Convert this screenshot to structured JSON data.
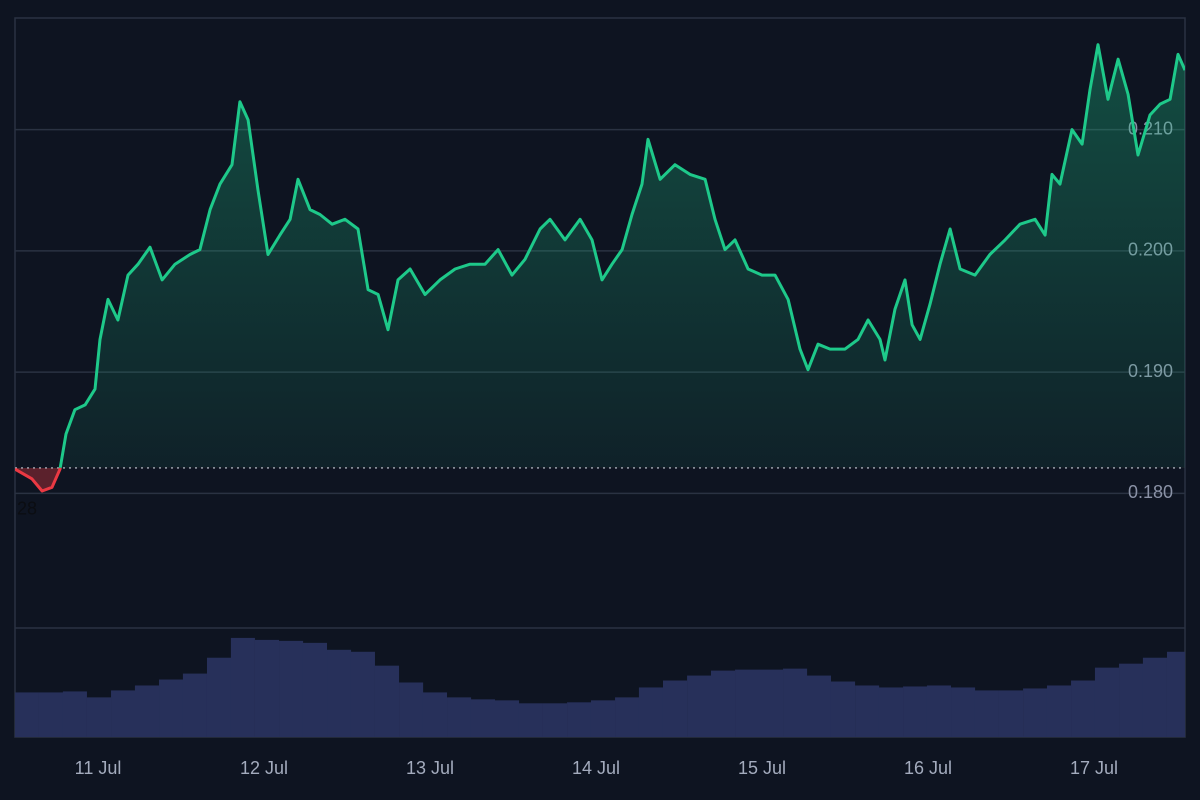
{
  "chart_data": [
    {
      "type": "line",
      "x": [
        10.5,
        10.602,
        10.663,
        10.723,
        10.771,
        10.807,
        10.861,
        10.922,
        10.982,
        11.012,
        11.06,
        11.12,
        11.181,
        11.241,
        11.313,
        11.386,
        11.464,
        11.554,
        11.614,
        11.675,
        11.735,
        11.807,
        11.855,
        11.904,
        11.964,
        12.024,
        12.096,
        12.157,
        12.205,
        12.277,
        12.337,
        12.41,
        12.488,
        12.566,
        12.627,
        12.687,
        12.747,
        12.807,
        12.88,
        12.97,
        13.06,
        13.151,
        13.241,
        13.331,
        13.41,
        13.494,
        13.572,
        13.663,
        13.723,
        13.813,
        13.904,
        13.976,
        14.036,
        14.096,
        14.157,
        14.217,
        14.277,
        14.313,
        14.386,
        14.476,
        14.566,
        14.657,
        14.717,
        14.777,
        14.837,
        14.916,
        15.0,
        15.078,
        15.157,
        15.229,
        15.277,
        15.337,
        15.41,
        15.5,
        15.578,
        15.639,
        15.711,
        15.741,
        15.801,
        15.861,
        15.904,
        15.952,
        16.012,
        16.072,
        16.133,
        16.193,
        16.283,
        16.373,
        16.464,
        16.554,
        16.645,
        16.705,
        16.747,
        16.795,
        16.867,
        16.928,
        16.976,
        17.024,
        17.084,
        17.145,
        17.205,
        17.265,
        17.337,
        17.398,
        17.458,
        17.506,
        17.548
      ],
      "values": [
        0.182,
        0.1812,
        0.1802,
        0.1805,
        0.182,
        0.1849,
        0.1869,
        0.1873,
        0.1886,
        0.1927,
        0.196,
        0.1943,
        0.198,
        0.1989,
        0.2003,
        0.1976,
        0.1989,
        0.1997,
        0.2001,
        0.2034,
        0.2055,
        0.2071,
        0.2123,
        0.2108,
        0.205,
        0.1997,
        0.2013,
        0.2026,
        0.2059,
        0.2034,
        0.203,
        0.2022,
        0.2026,
        0.2018,
        0.1968,
        0.1964,
        0.1935,
        0.1976,
        0.1985,
        0.1964,
        0.1976,
        0.1985,
        0.1989,
        0.1989,
        0.2001,
        0.198,
        0.1993,
        0.2018,
        0.2026,
        0.2009,
        0.2026,
        0.2009,
        0.1976,
        0.1989,
        0.2001,
        0.203,
        0.2055,
        0.2092,
        0.2059,
        0.2071,
        0.2063,
        0.2059,
        0.2026,
        0.2001,
        0.2009,
        0.1985,
        0.198,
        0.198,
        0.196,
        0.1919,
        0.1902,
        0.1923,
        0.1919,
        0.1919,
        0.1927,
        0.1943,
        0.1927,
        0.191,
        0.1952,
        0.1976,
        0.1939,
        0.1927,
        0.1956,
        0.1989,
        0.2018,
        0.1985,
        0.198,
        0.1997,
        0.2009,
        0.2022,
        0.2026,
        0.2013,
        0.2063,
        0.2055,
        0.21,
        0.2088,
        0.2133,
        0.217,
        0.2125,
        0.2158,
        0.2129,
        0.2079,
        0.2112,
        0.2121,
        0.2125,
        0.2162,
        0.2149
      ],
      "xlim": [
        10.5,
        17.548
      ],
      "xticks": [
        {
          "value": 11,
          "label": "11 Jul"
        },
        {
          "value": 12,
          "label": "12 Jul"
        },
        {
          "value": 13,
          "label": "13 Jul"
        },
        {
          "value": 14,
          "label": "14 Jul"
        },
        {
          "value": 15,
          "label": "15 Jul"
        },
        {
          "value": 16,
          "label": "16 Jul"
        },
        {
          "value": 17,
          "label": "17 Jul"
        }
      ],
      "ylim": [
        0.1689,
        0.2192
      ],
      "yticks": [
        {
          "value": 0.18,
          "label": "0.180"
        },
        {
          "value": 0.19,
          "label": "0.190"
        },
        {
          "value": 0.2,
          "label": "0.200"
        },
        {
          "value": 0.21,
          "label": "0.210"
        }
      ],
      "baseline": 0.1821,
      "baseline_label": "28",
      "up_color": "#1ec98a",
      "down_color": "#ea3943",
      "grid": true
    },
    {
      "type": "bar",
      "x": [
        10.572,
        10.717,
        10.861,
        11.006,
        11.151,
        11.295,
        11.44,
        11.584,
        11.729,
        11.873,
        12.018,
        12.163,
        12.307,
        12.452,
        12.596,
        12.741,
        12.886,
        13.03,
        13.175,
        13.319,
        13.464,
        13.608,
        13.753,
        13.898,
        14.042,
        14.187,
        14.331,
        14.476,
        14.621,
        14.765,
        14.91,
        15.054,
        15.199,
        15.343,
        15.488,
        15.633,
        15.777,
        15.922,
        16.066,
        16.211,
        16.355,
        16.5,
        16.645,
        16.789,
        16.934,
        17.078,
        17.223,
        17.367,
        17.512
      ],
      "values": [
        45,
        45,
        46,
        40,
        47,
        52,
        58,
        64,
        80,
        100,
        98,
        97,
        95,
        88,
        86,
        72,
        55,
        45,
        40,
        38,
        37,
        34,
        34,
        35,
        37,
        40,
        50,
        57,
        62,
        67,
        68,
        68,
        69,
        62,
        56,
        52,
        50,
        51,
        52,
        50,
        47,
        47,
        49,
        52,
        57,
        70,
        74,
        80,
        86
      ],
      "xlim": [
        10.5,
        17.548
      ],
      "ylim": [
        0,
        110
      ],
      "color": "#27305a"
    }
  ]
}
